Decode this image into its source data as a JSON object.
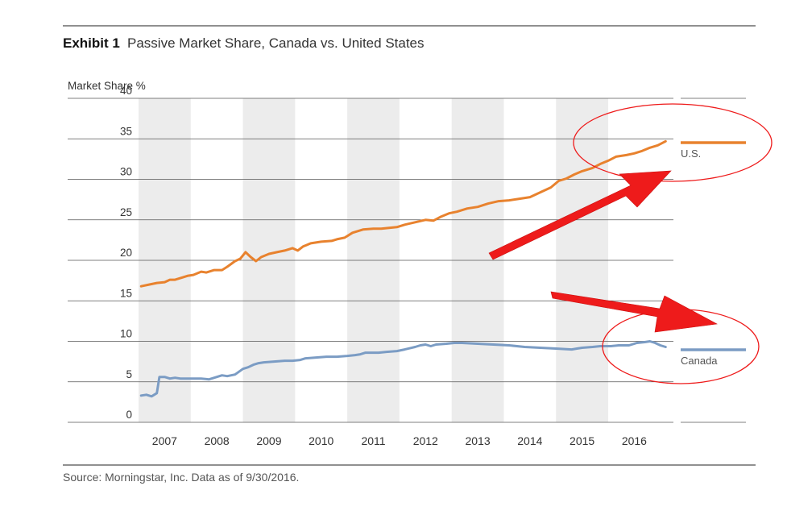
{
  "exhibit": {
    "number_label": "Exhibit 1",
    "title": "Passive Market Share, Canada vs. United States"
  },
  "source_note": "Source: Morningstar, Inc. Data as of 9/30/2016.",
  "colors": {
    "us": "#e8822e",
    "canada": "#7b9cc4",
    "band": "#ececec",
    "grid": "#555555",
    "annotation_red": "#ee1b1b"
  },
  "annotations": [
    "red-ellipse-us",
    "red-arrow-us",
    "red-ellipse-canada",
    "red-arrow-canada"
  ],
  "chart_data": {
    "type": "line",
    "title": "Passive Market Share, Canada vs. United States",
    "ylabel": "Market Share %",
    "xlabel": "",
    "ylim": [
      0,
      40
    ],
    "yticks": [
      0,
      5,
      10,
      15,
      20,
      25,
      30,
      35,
      40
    ],
    "xlim": [
      2006.5,
      2016.75
    ],
    "xticks": [
      "2007",
      "2008",
      "2009",
      "2010",
      "2011",
      "2012",
      "2013",
      "2014",
      "2015",
      "2016"
    ],
    "grid": "horizontal",
    "legend": "right",
    "series": [
      {
        "name": "U.S.",
        "x": [
          2006.55,
          2006.7,
          2006.85,
          2007.0,
          2007.1,
          2007.2,
          2007.35,
          2007.45,
          2007.55,
          2007.7,
          2007.8,
          2007.95,
          2008.1,
          2008.2,
          2008.35,
          2008.45,
          2008.55,
          2008.65,
          2008.75,
          2008.85,
          2009.0,
          2009.15,
          2009.3,
          2009.45,
          2009.55,
          2009.65,
          2009.8,
          2010.0,
          2010.2,
          2010.3,
          2010.45,
          2010.6,
          2010.8,
          2011.0,
          2011.15,
          2011.3,
          2011.45,
          2011.6,
          2011.8,
          2012.0,
          2012.15,
          2012.3,
          2012.45,
          2012.6,
          2012.8,
          2013.0,
          2013.2,
          2013.4,
          2013.6,
          2013.8,
          2014.0,
          2014.2,
          2014.4,
          2014.55,
          2014.7,
          2014.85,
          2015.0,
          2015.2,
          2015.35,
          2015.5,
          2015.65,
          2015.85,
          2016.0,
          2016.15,
          2016.3,
          2016.45,
          2016.6
        ],
        "values": [
          16.8,
          17.0,
          17.2,
          17.3,
          17.6,
          17.6,
          17.9,
          18.1,
          18.2,
          18.6,
          18.5,
          18.8,
          18.8,
          19.2,
          19.9,
          20.2,
          21.0,
          20.4,
          19.9,
          20.4,
          20.8,
          21.0,
          21.2,
          21.5,
          21.2,
          21.7,
          22.1,
          22.3,
          22.4,
          22.6,
          22.8,
          23.4,
          23.8,
          23.9,
          23.9,
          24.0,
          24.1,
          24.4,
          24.7,
          25.0,
          24.9,
          25.4,
          25.8,
          26.0,
          26.4,
          26.6,
          27.0,
          27.3,
          27.4,
          27.6,
          27.8,
          28.4,
          29.0,
          29.8,
          30.1,
          30.6,
          31.0,
          31.4,
          31.9,
          32.3,
          32.8,
          33.0,
          33.2,
          33.5,
          33.9,
          34.2,
          34.7
        ]
      },
      {
        "name": "Canada",
        "x": [
          2006.55,
          2006.65,
          2006.75,
          2006.85,
          2006.9,
          2007.0,
          2007.1,
          2007.2,
          2007.3,
          2007.5,
          2007.7,
          2007.85,
          2008.0,
          2008.1,
          2008.2,
          2008.35,
          2008.5,
          2008.6,
          2008.7,
          2008.8,
          2008.9,
          2009.1,
          2009.3,
          2009.45,
          2009.6,
          2009.7,
          2009.9,
          2010.1,
          2010.3,
          2010.5,
          2010.65,
          2010.75,
          2010.85,
          2011.0,
          2011.1,
          2011.25,
          2011.45,
          2011.6,
          2011.8,
          2011.9,
          2012.0,
          2012.1,
          2012.2,
          2012.4,
          2012.55,
          2012.7,
          2013.0,
          2013.3,
          2013.6,
          2013.9,
          2014.2,
          2014.5,
          2014.8,
          2014.9,
          2015.0,
          2015.2,
          2015.35,
          2015.55,
          2015.7,
          2015.9,
          2016.05,
          2016.2,
          2016.3,
          2016.4,
          2016.5,
          2016.6
        ],
        "values": [
          3.3,
          3.4,
          3.2,
          3.6,
          5.6,
          5.6,
          5.4,
          5.5,
          5.4,
          5.4,
          5.4,
          5.3,
          5.6,
          5.8,
          5.7,
          5.9,
          6.6,
          6.8,
          7.1,
          7.3,
          7.4,
          7.5,
          7.6,
          7.6,
          7.7,
          7.9,
          8.0,
          8.1,
          8.1,
          8.2,
          8.3,
          8.4,
          8.6,
          8.6,
          8.6,
          8.7,
          8.8,
          9.0,
          9.3,
          9.5,
          9.6,
          9.4,
          9.6,
          9.7,
          9.8,
          9.8,
          9.7,
          9.6,
          9.5,
          9.3,
          9.2,
          9.1,
          9.0,
          9.1,
          9.2,
          9.3,
          9.4,
          9.4,
          9.5,
          9.5,
          9.8,
          9.9,
          10.0,
          9.8,
          9.5,
          9.3
        ]
      }
    ]
  }
}
